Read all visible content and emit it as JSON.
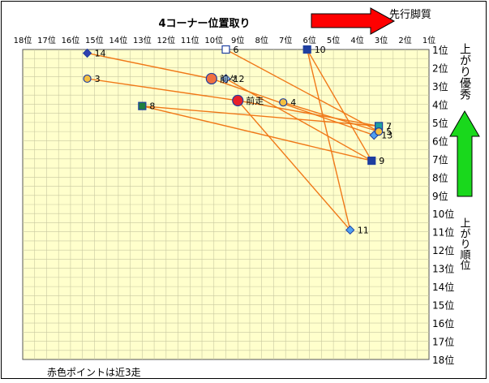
{
  "chart_data": {
    "type": "scatter",
    "title": "4コーナー位置取り",
    "xlabel": "",
    "ylabel": "",
    "x_ticks": [
      "18位",
      "17位",
      "16位",
      "15位",
      "14位",
      "13位",
      "12位",
      "11位",
      "10位",
      "9位",
      "8位",
      "7位",
      "6位",
      "5位",
      "4位",
      "3位",
      "2位",
      "1位"
    ],
    "y_ticks": [
      "1位",
      "2位",
      "3位",
      "4位",
      "5位",
      "6位",
      "7位",
      "8位",
      "9位",
      "10位",
      "11位",
      "12位",
      "13位",
      "14位",
      "15位",
      "16位",
      "17位",
      "18位"
    ],
    "xlim": [
      18,
      1
    ],
    "ylim": [
      1,
      18
    ],
    "grid": true,
    "series": [
      {
        "marker": "square",
        "points": [
          {
            "label": "10",
            "x": 6.1,
            "y": 1.0,
            "color": "#1f3fa0"
          },
          {
            "label": "7",
            "x": 3.1,
            "y": 5.2,
            "color": "#1fa0a0"
          },
          {
            "label": "8",
            "x": 13.0,
            "y": 4.1,
            "color": "#1f7f3f"
          },
          {
            "label": "9",
            "x": 3.4,
            "y": 7.1,
            "color": "#1f3fa0"
          },
          {
            "label": "6",
            "x": 9.5,
            "y": 1.0,
            "color": "#ffffff"
          }
        ]
      },
      {
        "marker": "diamond",
        "points": [
          {
            "label": "14",
            "x": 15.3,
            "y": 1.2,
            "color": "#3040b0"
          },
          {
            "label": "12",
            "x": 9.5,
            "y": 2.6,
            "color": "#a0c8f0"
          },
          {
            "label": "13",
            "x": 3.3,
            "y": 5.7,
            "color": "#4fa0f0"
          },
          {
            "label": "11",
            "x": 4.3,
            "y": 10.9,
            "color": "#4fa0f0"
          }
        ]
      },
      {
        "marker": "circle",
        "points": [
          {
            "label": "3",
            "x": 15.3,
            "y": 2.6,
            "color": "#f5c040"
          },
          {
            "label": "4",
            "x": 7.1,
            "y": 3.9,
            "color": "#f5c040"
          },
          {
            "label": "5",
            "x": 3.1,
            "y": 5.5,
            "color": "#f5c040"
          }
        ]
      },
      {
        "marker": "circle",
        "points": [
          {
            "label": "前走",
            "x": 9.0,
            "y": 3.8,
            "color": "#e8202a",
            "size": "large"
          },
          {
            "label": "前々",
            "x": 10.1,
            "y": 2.6,
            "color": "#f07040",
            "size": "large"
          }
        ]
      }
    ],
    "lines": [
      [
        [
          15.3,
          2.6
        ],
        [
          9.0,
          3.8
        ]
      ],
      [
        [
          15.3,
          1.2
        ],
        [
          10.1,
          2.6
        ]
      ],
      [
        [
          10.1,
          2.6
        ],
        [
          3.3,
          5.7
        ]
      ],
      [
        [
          9.5,
          1.0
        ],
        [
          3.1,
          5.5
        ]
      ],
      [
        [
          9.5,
          2.6
        ],
        [
          3.4,
          7.1
        ]
      ],
      [
        [
          9.0,
          3.8
        ],
        [
          4.3,
          10.9
        ]
      ],
      [
        [
          9.0,
          3.8
        ],
        [
          3.1,
          5.2
        ]
      ],
      [
        [
          6.1,
          1.0
        ],
        [
          4.3,
          10.9
        ]
      ],
      [
        [
          6.1,
          1.0
        ],
        [
          3.4,
          7.1
        ]
      ],
      [
        [
          13.0,
          4.1
        ],
        [
          3.1,
          5.2
        ]
      ],
      [
        [
          13.0,
          4.1
        ],
        [
          3.4,
          7.1
        ]
      ],
      [
        [
          7.1,
          3.9
        ],
        [
          3.1,
          5.5
        ]
      ]
    ],
    "annotations": {
      "arrow_right": "先行脚質",
      "arrow_up": "上がり優秀",
      "vertical_label": "上がり順位",
      "footnote": "赤色ポイントは近3走"
    }
  }
}
